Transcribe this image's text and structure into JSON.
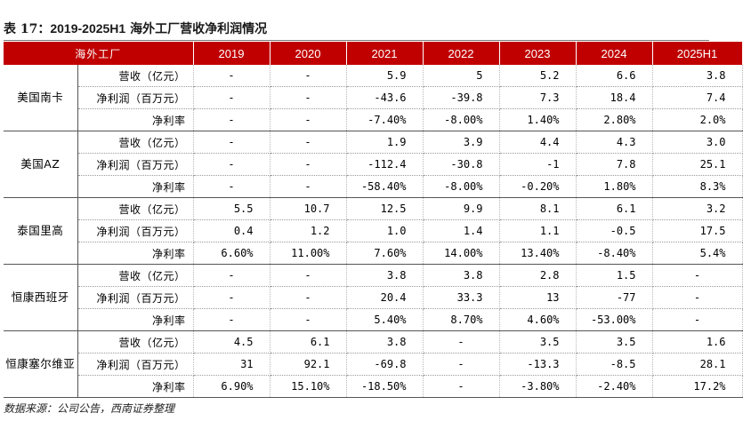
{
  "title": {
    "prefix": "表 17：",
    "range": "2019-2025H1",
    "text": " 海外工厂营收净利润情况"
  },
  "header": [
    "海外工厂",
    "2019",
    "2020",
    "2021",
    "2022",
    "2023",
    "2024",
    "2025H1"
  ],
  "groups": [
    {
      "name": "美国南卡",
      "rows": [
        {
          "metric": "营收（亿元）",
          "values": [
            "-",
            "-",
            "5.9",
            "5",
            "5.2",
            "6.6",
            "3.8"
          ]
        },
        {
          "metric": "净利润（百万元）",
          "values": [
            "-",
            "-",
            "-43.6",
            "-39.8",
            "7.3",
            "18.4",
            "7.4"
          ]
        },
        {
          "metric": "净利率",
          "values": [
            "-",
            "-",
            "-7.40%",
            "-8.00%",
            "1.40%",
            "2.80%",
            "2.0%"
          ]
        }
      ]
    },
    {
      "name": "美国AZ",
      "rows": [
        {
          "metric": "营收（亿元）",
          "values": [
            "-",
            "-",
            "1.9",
            "3.9",
            "4.4",
            "4.3",
            "3.0"
          ]
        },
        {
          "metric": "净利润（百万元）",
          "values": [
            "-",
            "-",
            "-112.4",
            "-30.8",
            "-1",
            "7.8",
            "25.1"
          ]
        },
        {
          "metric": "净利率",
          "values": [
            "-",
            "-",
            "-58.40%",
            "-8.00%",
            "-0.20%",
            "1.80%",
            "8.3%"
          ]
        }
      ]
    },
    {
      "name": "泰国里高",
      "rows": [
        {
          "metric": "营收（亿元）",
          "values": [
            "5.5",
            "10.7",
            "12.5",
            "9.9",
            "8.1",
            "6.1",
            "3.2"
          ]
        },
        {
          "metric": "净利润（百万元）",
          "values": [
            "0.4",
            "1.2",
            "1.0",
            "1.4",
            "1.1",
            "-0.5",
            "17.5"
          ]
        },
        {
          "metric": "净利率",
          "values": [
            "6.60%",
            "11.00%",
            "7.60%",
            "14.00%",
            "13.40%",
            "-8.40%",
            "5.4%"
          ]
        }
      ]
    },
    {
      "name": "恒康西班牙",
      "rows": [
        {
          "metric": "营收（亿元）",
          "values": [
            "-",
            "-",
            "3.8",
            "3.8",
            "2.8",
            "1.5",
            "-"
          ]
        },
        {
          "metric": "净利润（百万元）",
          "values": [
            "-",
            "-",
            "20.4",
            "33.3",
            "13",
            "-77",
            "-"
          ]
        },
        {
          "metric": "净利率",
          "values": [
            "-",
            "-",
            "5.40%",
            "8.70%",
            "4.60%",
            "-53.00%",
            "-"
          ]
        }
      ]
    },
    {
      "name": "恒康塞尔维亚",
      "rows": [
        {
          "metric": "营收（亿元）",
          "values": [
            "4.5",
            "6.1",
            "3.8",
            "-",
            "3.5",
            "3.5",
            "1.6"
          ]
        },
        {
          "metric": "净利润（百万元）",
          "values": [
            "31",
            "92.1",
            "-69.8",
            "-",
            "-13.3",
            "-8.5",
            "28.1"
          ]
        },
        {
          "metric": "净利率",
          "values": [
            "6.90%",
            "15.10%",
            "-18.50%",
            "-",
            "-3.80%",
            "-2.40%",
            "17.2%"
          ]
        }
      ]
    }
  ],
  "source": "数据来源：公司公告，西南证券整理"
}
